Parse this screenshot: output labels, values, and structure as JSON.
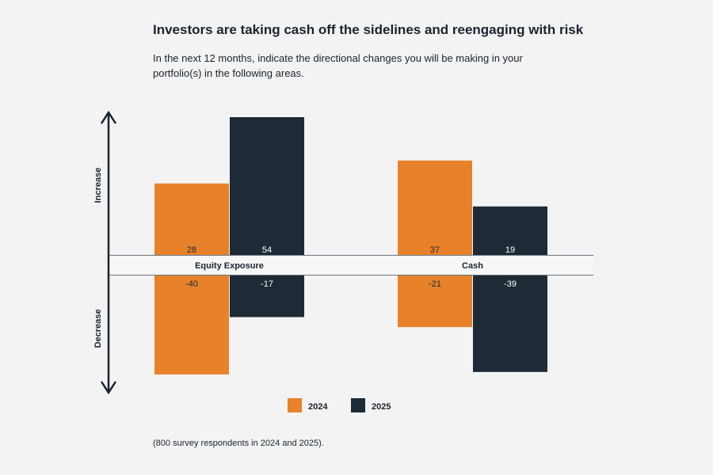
{
  "title": "Investors are taking cash off the sidelines and reengaging with risk",
  "subtitle": "In the next 12 months, indicate the directional changes you will be making in your portfolio(s) in the following areas.",
  "footnote": "(800 survey respondents in 2024 and 2025).",
  "axis": {
    "increase_label": "Increase",
    "decrease_label": "Decrease"
  },
  "colors": {
    "2024": "#e8822a",
    "2025": "#1e2a36"
  },
  "chart_data": {
    "type": "bar",
    "categories": [
      "Equity Exposure",
      "Cash"
    ],
    "series": [
      {
        "name": "2024",
        "increase": [
          28,
          37
        ],
        "decrease": [
          -40,
          -21
        ]
      },
      {
        "name": "2025",
        "increase": [
          54,
          19
        ],
        "decrease": [
          -17,
          -39
        ]
      }
    ],
    "legend": "bottom-center",
    "grid": false
  }
}
